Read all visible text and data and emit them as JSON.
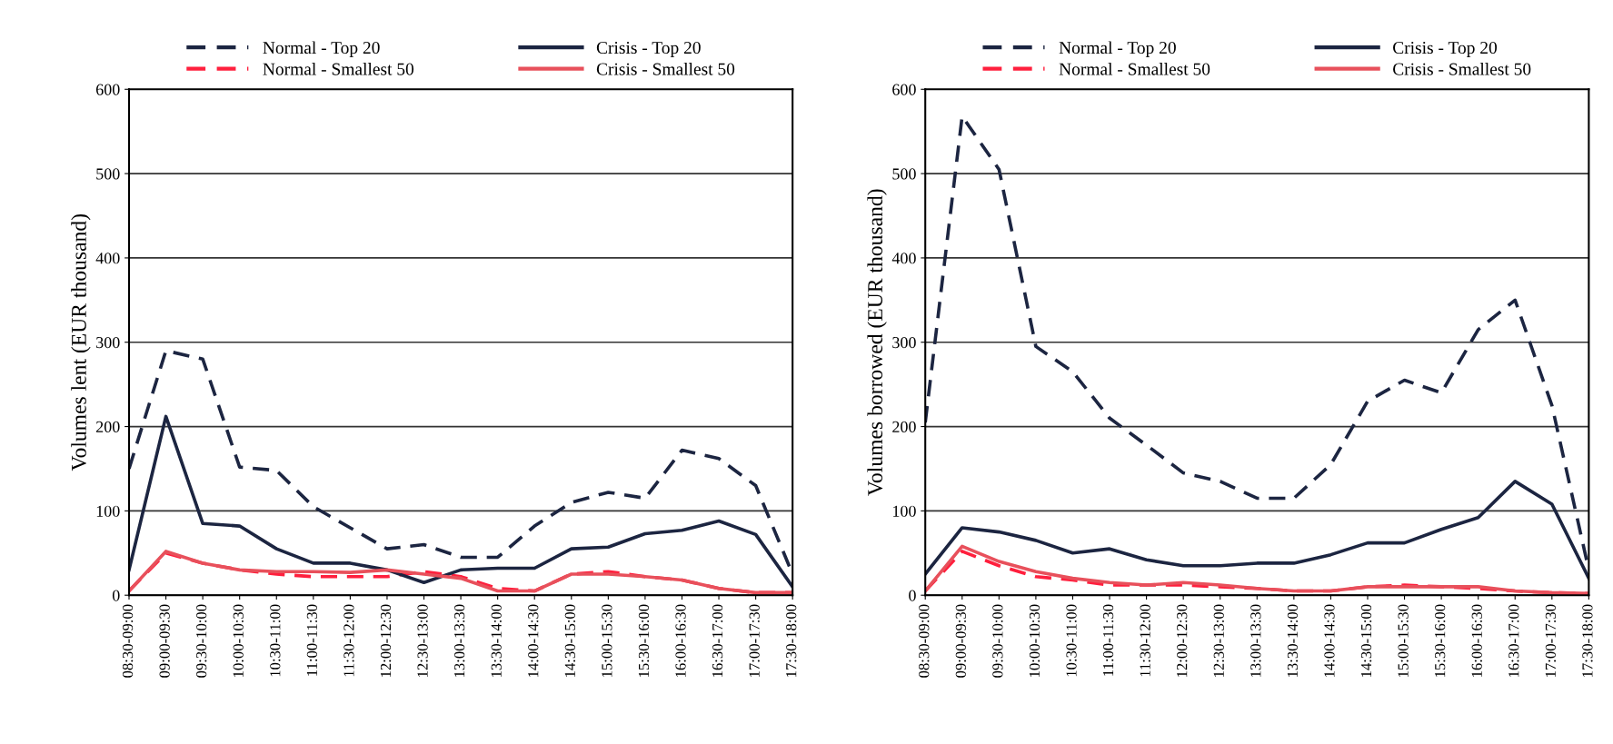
{
  "chart_data": [
    {
      "type": "line",
      "ylabel": "Volumes lent (EUR thousand)",
      "categories": [
        "08:30-09:00",
        "09:00-09:30",
        "09:30-10:00",
        "10:00-10:30",
        "10:30-11:00",
        "11:00-11:30",
        "11:30-12:00",
        "12:00-12:30",
        "12:30-13:00",
        "13:00-13:30",
        "13:30-14:00",
        "14:00-14:30",
        "14:30-15:00",
        "15:00-15:30",
        "15:30-16:00",
        "16:00-16:30",
        "16:30-17:00",
        "17:00-17:30",
        "17:30-18:00"
      ],
      "ylim": [
        0,
        600
      ],
      "yticks": [
        0,
        100,
        200,
        300,
        400,
        500,
        600
      ],
      "grid": "y",
      "legend": "top",
      "series": [
        {
          "name": "Normal - Top 20",
          "color": "#1c2541",
          "line_style": "dashed",
          "values": [
            150,
            290,
            280,
            152,
            148,
            105,
            80,
            55,
            60,
            45,
            45,
            82,
            110,
            122,
            115,
            172,
            162,
            130,
            25
          ]
        },
        {
          "name": "Normal - Smallest 50",
          "color": "#ff1f3d",
          "line_style": "dashed",
          "values": [
            5,
            50,
            38,
            30,
            25,
            22,
            22,
            22,
            28,
            22,
            8,
            5,
            25,
            28,
            22,
            18,
            8,
            3,
            3
          ]
        },
        {
          "name": "Crisis - Top 20",
          "color": "#1c2541",
          "line_style": "solid",
          "values": [
            30,
            212,
            85,
            82,
            55,
            38,
            38,
            30,
            15,
            30,
            32,
            32,
            55,
            57,
            73,
            77,
            88,
            72,
            10
          ]
        },
        {
          "name": "Crisis - Smallest 50",
          "color": "#e8505b",
          "line_style": "solid",
          "values": [
            5,
            52,
            38,
            30,
            28,
            28,
            27,
            30,
            25,
            20,
            5,
            5,
            25,
            25,
            22,
            18,
            8,
            3,
            3
          ]
        }
      ]
    },
    {
      "type": "line",
      "ylabel": "Volumes borrowed (EUR thousand)",
      "categories": [
        "08:30-09:00",
        "09:00-09:30",
        "09:30-10:00",
        "10:00-10:30",
        "10:30-11:00",
        "11:00-11:30",
        "11:30-12:00",
        "12:00-12:30",
        "12:30-13:00",
        "13:00-13:30",
        "13:30-14:00",
        "14:00-14:30",
        "14:30-15:00",
        "15:00-15:30",
        "15:30-16:00",
        "16:00-16:30",
        "16:30-17:00",
        "17:00-17:30",
        "17:30-18:00"
      ],
      "ylim": [
        0,
        600
      ],
      "yticks": [
        0,
        100,
        200,
        300,
        400,
        500,
        600
      ],
      "grid": "y",
      "legend": "top",
      "series": [
        {
          "name": "Normal - Top 20",
          "color": "#1c2541",
          "line_style": "dashed",
          "values": [
            205,
            568,
            505,
            295,
            265,
            210,
            178,
            145,
            135,
            115,
            115,
            155,
            230,
            255,
            240,
            315,
            350,
            225,
            30
          ]
        },
        {
          "name": "Normal - Smallest 50",
          "color": "#ff1f3d",
          "line_style": "dashed",
          "values": [
            5,
            52,
            35,
            22,
            18,
            12,
            12,
            12,
            10,
            8,
            5,
            5,
            10,
            12,
            10,
            8,
            5,
            3,
            2
          ]
        },
        {
          "name": "Crisis - Top 20",
          "color": "#1c2541",
          "line_style": "solid",
          "values": [
            25,
            80,
            75,
            65,
            50,
            55,
            42,
            35,
            35,
            38,
            38,
            48,
            62,
            62,
            78,
            92,
            135,
            108,
            20
          ]
        },
        {
          "name": "Crisis - Smallest 50",
          "color": "#e8505b",
          "line_style": "solid",
          "values": [
            5,
            58,
            40,
            28,
            20,
            15,
            12,
            15,
            12,
            8,
            5,
            5,
            10,
            10,
            10,
            10,
            5,
            3,
            2
          ]
        }
      ]
    }
  ]
}
